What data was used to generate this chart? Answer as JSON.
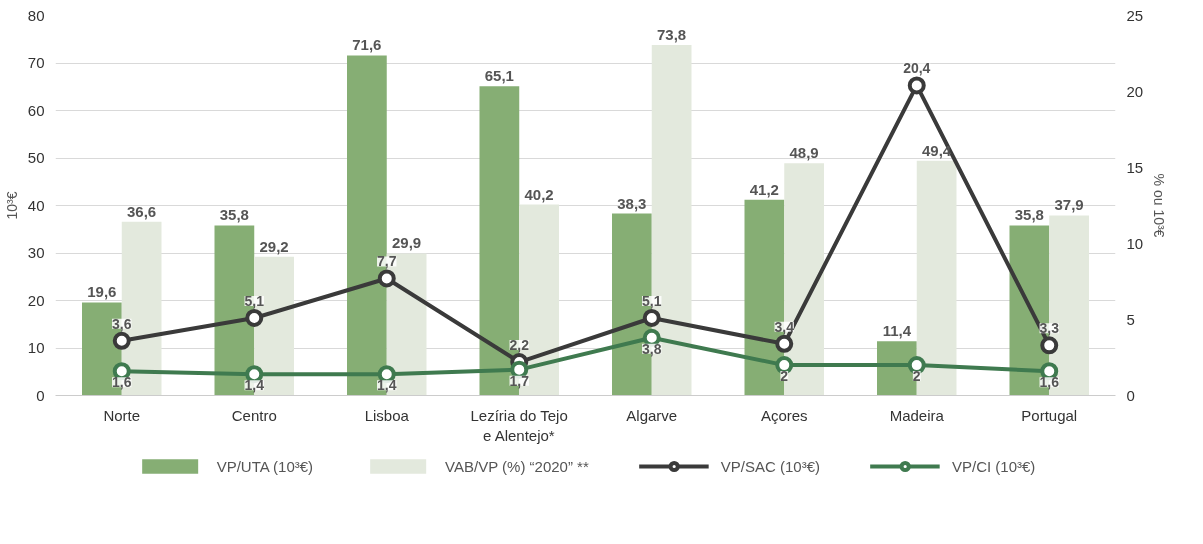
{
  "chart_data": {
    "type": "bar",
    "ylabel": "10³€",
    "y2label": "% ou 10³€",
    "categories": [
      "Norte",
      "Centro",
      "Lisboa",
      "Lezíria do Tejo\ne Alentejo*",
      "Algarve",
      "Açores",
      "Madeira",
      "Portugal"
    ],
    "series": [
      {
        "name": "VP/UTA (10³€)",
        "color": "#86ae74",
        "values": [
          19.6,
          35.8,
          71.6,
          65.1,
          38.3,
          41.2,
          11.4,
          35.8
        ],
        "value_labels": [
          "19,6",
          "35,8",
          "71,6",
          "65,1",
          "38,3",
          "41,2",
          "11,4",
          "35,8"
        ]
      },
      {
        "name": "VAB/VP (%) “2020” **",
        "color": "#e3e9dd",
        "values": [
          36.6,
          29.2,
          29.9,
          40.2,
          73.8,
          48.9,
          49.4,
          37.9
        ],
        "value_labels": [
          "36,6",
          "29,2",
          "29,9",
          "40,2",
          "73,8",
          "48,9",
          "49,4",
          "37,9"
        ]
      },
      {
        "name": "VP/SAC (10³€)",
        "type": "line",
        "axis": "y2",
        "color": "#3a3a3a",
        "values": [
          3.6,
          5.1,
          7.7,
          2.2,
          5.1,
          3.4,
          20.4,
          3.3
        ],
        "value_labels": [
          "3,6",
          "5,1",
          "7,7",
          "2,2",
          "5,1",
          "3,4",
          "20,4",
          "3,3"
        ]
      },
      {
        "name": "VP/CI (10³€)",
        "type": "line",
        "axis": "y2",
        "color": "#3f7a4f",
        "values": [
          1.6,
          1.4,
          1.4,
          1.7,
          3.8,
          2,
          2,
          1.6
        ],
        "value_labels": [
          "1,6",
          "1,4",
          "1,4",
          "1,7",
          "3,8",
          "2",
          "2",
          "1,6"
        ]
      }
    ],
    "ylim": [
      0,
      80
    ],
    "yticks": [
      0,
      10,
      20,
      30,
      40,
      50,
      60,
      70,
      80
    ],
    "y2lim": [
      0,
      25
    ],
    "y2ticks": [
      0,
      5,
      10,
      15,
      20,
      25
    ],
    "grid": "y",
    "legend": "bottom",
    "marker": "circle",
    "line_style": "solid"
  }
}
